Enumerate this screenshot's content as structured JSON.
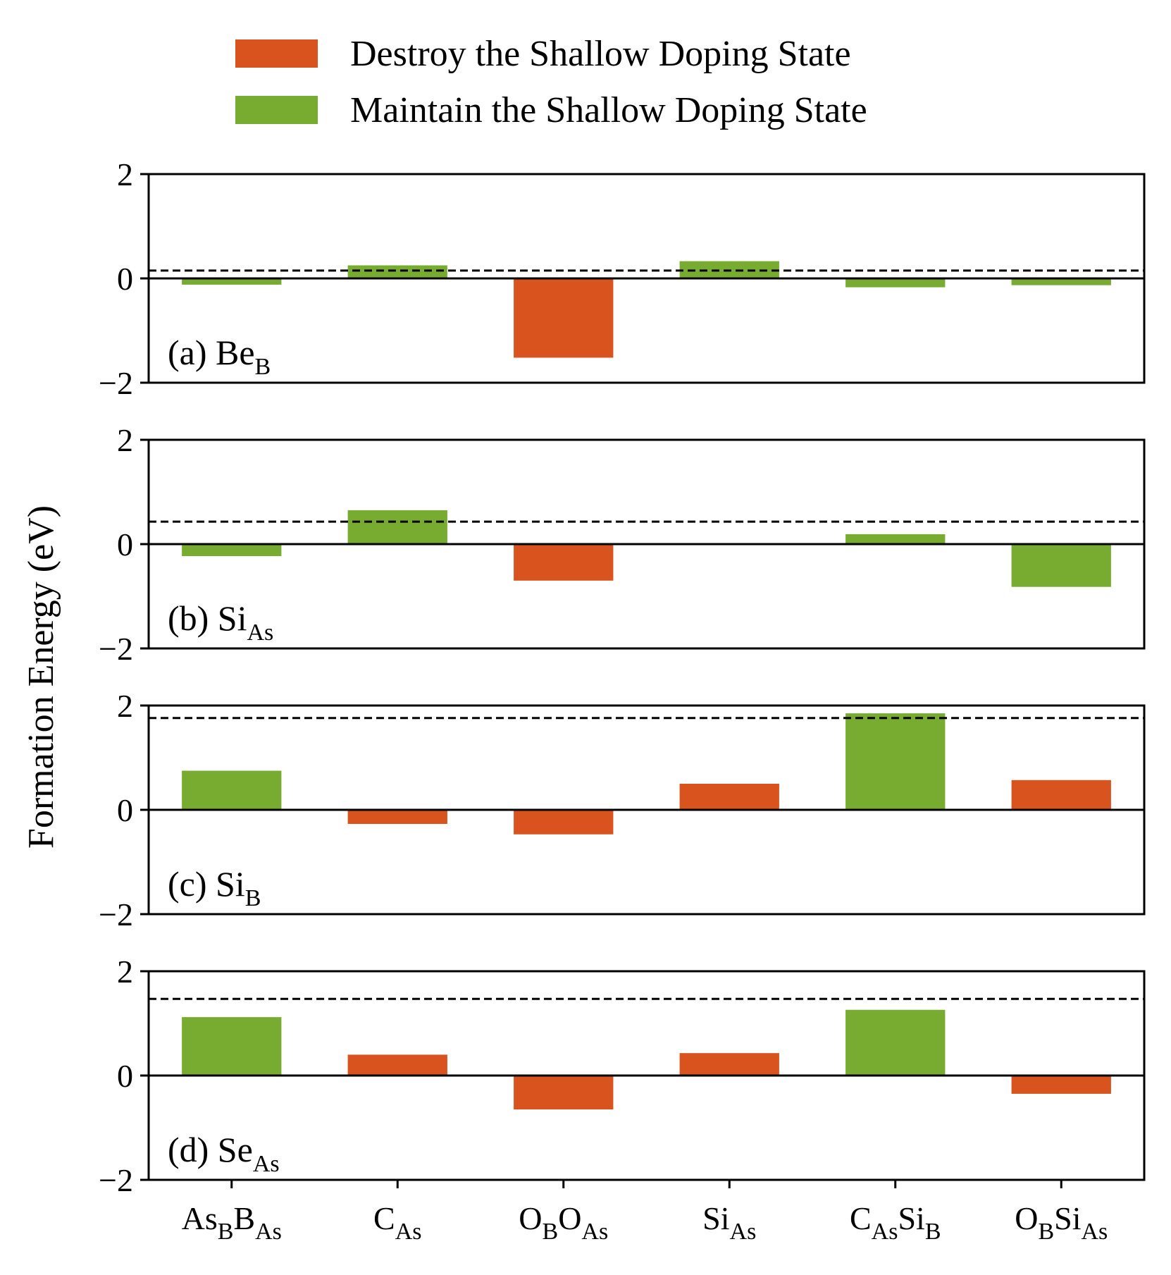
{
  "chart_data": {
    "type": "bar",
    "ylabel": "Formation Energy (eV)",
    "ylim": [
      -2,
      2
    ],
    "yticks": [
      {
        "value": 2,
        "label": "2"
      },
      {
        "value": 0,
        "label": "0"
      },
      {
        "value": -2,
        "label": "−2"
      }
    ],
    "categories": [
      {
        "id": "AsB_BAs",
        "parts": [
          {
            "t": "As"
          },
          {
            "t": "B",
            "sub": true
          },
          {
            "t": "B"
          },
          {
            "t": "As",
            "sub": true
          }
        ]
      },
      {
        "id": "CAs",
        "parts": [
          {
            "t": "C"
          },
          {
            "t": "As",
            "sub": true
          }
        ]
      },
      {
        "id": "OB_OAs",
        "parts": [
          {
            "t": "O"
          },
          {
            "t": "B",
            "sub": true
          },
          {
            "t": "O"
          },
          {
            "t": "As",
            "sub": true
          }
        ]
      },
      {
        "id": "SiAs",
        "parts": [
          {
            "t": "Si"
          },
          {
            "t": "As",
            "sub": true
          }
        ]
      },
      {
        "id": "CAs_SiB",
        "parts": [
          {
            "t": "C"
          },
          {
            "t": "As",
            "sub": true
          },
          {
            "t": "Si"
          },
          {
            "t": "B",
            "sub": true
          }
        ]
      },
      {
        "id": "OB_SiAs",
        "parts": [
          {
            "t": "O"
          },
          {
            "t": "B",
            "sub": true
          },
          {
            "t": "Si"
          },
          {
            "t": "As",
            "sub": true
          }
        ]
      }
    ],
    "legend": {
      "placement": "top-center",
      "entries": [
        {
          "key": "destroy",
          "label": "Destroy the Shallow Doping State",
          "color": "#d9531e"
        },
        {
          "key": "maintain",
          "label": "Maintain the Shallow Doping State",
          "color": "#77ac30"
        }
      ]
    },
    "panels": [
      {
        "label_parts": [
          {
            "t": "(a) Be"
          },
          {
            "t": "B",
            "sub": true
          }
        ],
        "dashed_line": 0.15,
        "values": [
          -0.12,
          0.25,
          -1.52,
          0.33,
          -0.17,
          -0.13
        ],
        "states": [
          "maintain",
          "maintain",
          "destroy",
          "maintain",
          "maintain",
          "maintain"
        ]
      },
      {
        "label_parts": [
          {
            "t": "(b) Si"
          },
          {
            "t": "As",
            "sub": true
          }
        ],
        "dashed_line": 0.43,
        "values": [
          -0.23,
          0.65,
          -0.7,
          0.0,
          0.19,
          -0.82
        ],
        "states": [
          "maintain",
          "maintain",
          "destroy",
          "maintain",
          "maintain",
          "maintain"
        ]
      },
      {
        "label_parts": [
          {
            "t": "(c) Si"
          },
          {
            "t": "B",
            "sub": true
          }
        ],
        "dashed_line": 1.76,
        "values": [
          0.75,
          -0.27,
          -0.47,
          0.5,
          1.85,
          0.57
        ],
        "states": [
          "maintain",
          "destroy",
          "destroy",
          "destroy",
          "maintain",
          "destroy"
        ]
      },
      {
        "label_parts": [
          {
            "t": "(d) Se"
          },
          {
            "t": "As",
            "sub": true
          }
        ],
        "dashed_line": 1.47,
        "values": [
          1.12,
          0.4,
          -0.65,
          0.43,
          1.26,
          -0.35
        ],
        "states": [
          "maintain",
          "destroy",
          "destroy",
          "destroy",
          "maintain",
          "destroy"
        ]
      }
    ]
  }
}
